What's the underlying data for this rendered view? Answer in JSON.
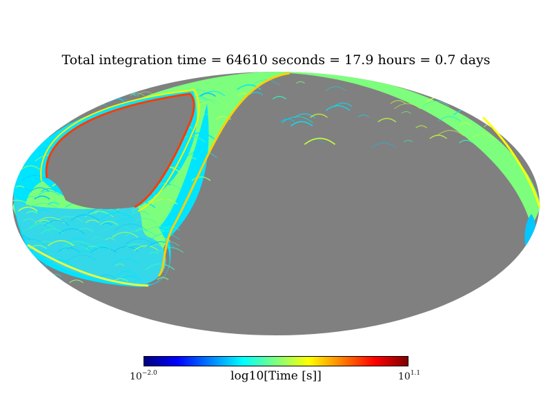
{
  "chart_data": {
    "type": "heatmap",
    "projection": "mollweide",
    "title": "Total integration time = 64610 seconds = 17.9 hours = 0.7 days",
    "colorbar": {
      "label": "log10[Time [s]]",
      "min_base": "10",
      "min_exp": "−2.0",
      "max_base": "10",
      "max_exp": "1.1",
      "range": [
        -2.0,
        1.1
      ],
      "colormap": [
        "#00007f",
        "#0000ff",
        "#007fff",
        "#00ffff",
        "#7fff7f",
        "#ffff00",
        "#ff7f00",
        "#ff0000",
        "#7f0000"
      ]
    },
    "masked_color": "#808080",
    "coverage_palette": [
      "#00e5ff",
      "#35f5c0",
      "#7dff7d",
      "#c8ff3c",
      "#00c8ff"
    ],
    "edge_colors": [
      "#ffff00",
      "#ff8c00",
      "#ff0000"
    ]
  }
}
